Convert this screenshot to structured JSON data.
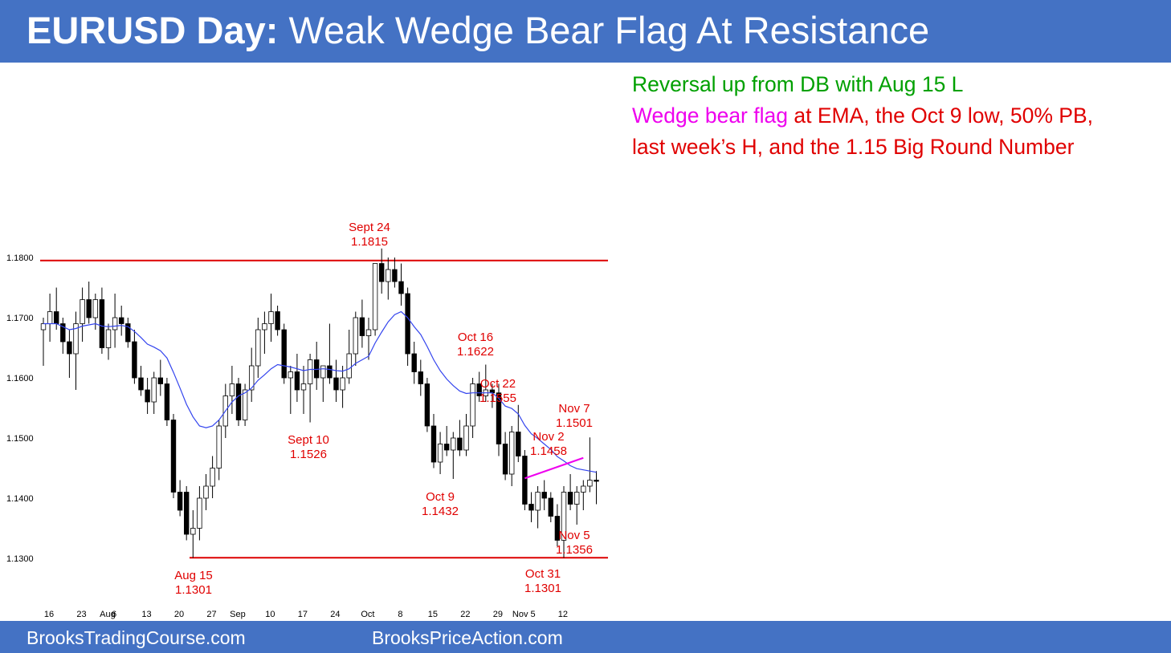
{
  "title": {
    "bold": "EURUSD Day:",
    "rest": "Weak Wedge Bear Flag At Resistance"
  },
  "commentary": {
    "line1": "Reversal up from DB with Aug 15 L",
    "line2_magenta": "Wedge bear flag",
    "line2_rest": "at EMA, the Oct 9 low, 50% PB,",
    "line3": "last week’s H, and the 1.15 Big Round Number"
  },
  "footer": {
    "left": "BrooksTradingCourse.com",
    "right": "BrooksPriceAction.com"
  },
  "colors": {
    "banner": "#4472c4",
    "commentary_green": "#00a000",
    "commentary_red": "#e00000",
    "wedge_magenta": "#ee00ee",
    "ema_blue": "#3344ee",
    "resistance_support": "#dd0000",
    "annotation_red": "#e00000"
  },
  "chart_data": {
    "type": "candlestick",
    "title": "",
    "xlabel": "",
    "ylabel": "",
    "ylim": [
      1.1265,
      1.1845
    ],
    "y_ticks": [
      "1.1300",
      "1.1400",
      "1.1500",
      "1.1600",
      "1.1700",
      "1.1800"
    ],
    "x_ticks": [
      {
        "label": "16",
        "bar": 0
      },
      {
        "label": "23",
        "bar": 5
      },
      {
        "label": "Aug",
        "bar": 9
      },
      {
        "label": "6",
        "bar": 10
      },
      {
        "label": "13",
        "bar": 15
      },
      {
        "label": "20",
        "bar": 20
      },
      {
        "label": "27",
        "bar": 25
      },
      {
        "label": "Sep",
        "bar": 29
      },
      {
        "label": "10",
        "bar": 34
      },
      {
        "label": "17",
        "bar": 39
      },
      {
        "label": "24",
        "bar": 44
      },
      {
        "label": "Oct",
        "bar": 49
      },
      {
        "label": "8",
        "bar": 54
      },
      {
        "label": "15",
        "bar": 59
      },
      {
        "label": "22",
        "bar": 64
      },
      {
        "label": "29",
        "bar": 69
      },
      {
        "label": "Nov 5",
        "bar": 73
      },
      {
        "label": "12",
        "bar": 79
      }
    ],
    "series": [
      {
        "type": "ohlc",
        "bars": [
          [
            1.168,
            1.17,
            1.162,
            1.169
          ],
          [
            1.169,
            1.174,
            1.166,
            1.171
          ],
          [
            1.171,
            1.175,
            1.168,
            1.169
          ],
          [
            1.169,
            1.17,
            1.164,
            1.166
          ],
          [
            1.166,
            1.168,
            1.16,
            1.164
          ],
          [
            1.164,
            1.171,
            1.158,
            1.169
          ],
          [
            1.169,
            1.175,
            1.166,
            1.173
          ],
          [
            1.173,
            1.176,
            1.169,
            1.17
          ],
          [
            1.17,
            1.174,
            1.168,
            1.173
          ],
          [
            1.173,
            1.175,
            1.164,
            1.165
          ],
          [
            1.165,
            1.169,
            1.163,
            1.168
          ],
          [
            1.168,
            1.174,
            1.165,
            1.17
          ],
          [
            1.17,
            1.172,
            1.167,
            1.169
          ],
          [
            1.169,
            1.17,
            1.165,
            1.166
          ],
          [
            1.166,
            1.168,
            1.159,
            1.16
          ],
          [
            1.16,
            1.162,
            1.157,
            1.158
          ],
          [
            1.158,
            1.16,
            1.154,
            1.156
          ],
          [
            1.156,
            1.161,
            1.154,
            1.16
          ],
          [
            1.16,
            1.163,
            1.157,
            1.159
          ],
          [
            1.159,
            1.16,
            1.152,
            1.153
          ],
          [
            1.153,
            1.154,
            1.14,
            1.141
          ],
          [
            1.141,
            1.143,
            1.137,
            1.138
          ],
          [
            1.141,
            1.142,
            1.133,
            1.134
          ],
          [
            1.134,
            1.138,
            1.1301,
            1.135
          ],
          [
            1.135,
            1.142,
            1.133,
            1.14
          ],
          [
            1.14,
            1.144,
            1.138,
            1.142
          ],
          [
            1.142,
            1.147,
            1.14,
            1.145
          ],
          [
            1.145,
            1.153,
            1.143,
            1.152
          ],
          [
            1.152,
            1.159,
            1.15,
            1.157
          ],
          [
            1.157,
            1.162,
            1.154,
            1.159
          ],
          [
            1.159,
            1.16,
            1.152,
            1.153
          ],
          [
            1.153,
            1.159,
            1.152,
            1.158
          ],
          [
            1.158,
            1.165,
            1.156,
            1.162
          ],
          [
            1.162,
            1.17,
            1.16,
            1.168
          ],
          [
            1.168,
            1.171,
            1.164,
            1.169
          ],
          [
            1.169,
            1.174,
            1.166,
            1.171
          ],
          [
            1.171,
            1.172,
            1.167,
            1.168
          ],
          [
            1.168,
            1.169,
            1.159,
            1.16
          ],
          [
            1.16,
            1.162,
            1.154,
            1.161
          ],
          [
            1.161,
            1.164,
            1.156,
            1.158
          ],
          [
            1.158,
            1.162,
            1.154,
            1.159
          ],
          [
            1.159,
            1.164,
            1.1526,
            1.163
          ],
          [
            1.163,
            1.166,
            1.158,
            1.16
          ],
          [
            1.16,
            1.162,
            1.156,
            1.162
          ],
          [
            1.162,
            1.169,
            1.159,
            1.16
          ],
          [
            1.16,
            1.163,
            1.156,
            1.158
          ],
          [
            1.158,
            1.162,
            1.155,
            1.16
          ],
          [
            1.16,
            1.168,
            1.159,
            1.164
          ],
          [
            1.164,
            1.171,
            1.162,
            1.17
          ],
          [
            1.17,
            1.173,
            1.165,
            1.167
          ],
          [
            1.167,
            1.17,
            1.163,
            1.168
          ],
          [
            1.168,
            1.179,
            1.167,
            1.179
          ],
          [
            1.179,
            1.1815,
            1.174,
            1.176
          ],
          [
            1.176,
            1.18,
            1.173,
            1.178
          ],
          [
            1.178,
            1.18,
            1.175,
            1.176
          ],
          [
            1.176,
            1.179,
            1.172,
            1.174
          ],
          [
            1.174,
            1.175,
            1.162,
            1.164
          ],
          [
            1.164,
            1.166,
            1.159,
            1.161
          ],
          [
            1.161,
            1.163,
            1.157,
            1.159
          ],
          [
            1.159,
            1.16,
            1.151,
            1.152
          ],
          [
            1.152,
            1.154,
            1.145,
            1.146
          ],
          [
            1.146,
            1.151,
            1.144,
            1.149
          ],
          [
            1.149,
            1.152,
            1.147,
            1.148
          ],
          [
            1.148,
            1.151,
            1.1432,
            1.15
          ],
          [
            1.15,
            1.153,
            1.147,
            1.148
          ],
          [
            1.148,
            1.154,
            1.147,
            1.152
          ],
          [
            1.152,
            1.16,
            1.15,
            1.159
          ],
          [
            1.159,
            1.161,
            1.156,
            1.157
          ],
          [
            1.157,
            1.1622,
            1.156,
            1.158
          ],
          [
            1.158,
            1.159,
            1.155,
            1.1575
          ],
          [
            1.1575,
            1.159,
            1.147,
            1.149
          ],
          [
            1.149,
            1.151,
            1.143,
            1.144
          ],
          [
            1.144,
            1.152,
            1.142,
            1.151
          ],
          [
            1.151,
            1.1555,
            1.146,
            1.147
          ],
          [
            1.147,
            1.148,
            1.138,
            1.139
          ],
          [
            1.139,
            1.141,
            1.136,
            1.138
          ],
          [
            1.138,
            1.142,
            1.135,
            1.141
          ],
          [
            1.141,
            1.143,
            1.138,
            1.14
          ],
          [
            1.14,
            1.141,
            1.136,
            1.137
          ],
          [
            1.137,
            1.139,
            1.132,
            1.133
          ],
          [
            1.133,
            1.142,
            1.1301,
            1.141
          ],
          [
            1.141,
            1.144,
            1.138,
            1.139
          ],
          [
            1.139,
            1.142,
            1.1356,
            1.141
          ],
          [
            1.141,
            1.143,
            1.138,
            1.142
          ],
          [
            1.142,
            1.1501,
            1.141,
            1.143
          ],
          [
            1.143,
            1.1445,
            1.139,
            1.1428
          ]
        ]
      },
      {
        "type": "ema",
        "values": [
          1.169,
          1.169,
          1.169,
          1.1685,
          1.168,
          1.1682,
          1.1686,
          1.1688,
          1.169,
          1.1686,
          1.1685,
          1.1686,
          1.1687,
          1.1685,
          1.1677,
          1.1667,
          1.1656,
          1.1651,
          1.1645,
          1.1633,
          1.1609,
          1.1583,
          1.1556,
          1.1535,
          1.152,
          1.1517,
          1.152,
          1.153,
          1.1545,
          1.156,
          1.157,
          1.1575,
          1.1583,
          1.1596,
          1.1605,
          1.1615,
          1.1622,
          1.162,
          1.1618,
          1.1615,
          1.1612,
          1.1614,
          1.1614,
          1.1615,
          1.1614,
          1.1612,
          1.1611,
          1.1615,
          1.1624,
          1.163,
          1.1636,
          1.1658,
          1.1676,
          1.1693,
          1.1705,
          1.171,
          1.17,
          1.1685,
          1.1672,
          1.1652,
          1.163,
          1.1612,
          1.1598,
          1.1587,
          1.1578,
          1.1574,
          1.1575,
          1.1575,
          1.1575,
          1.1575,
          1.1566,
          1.1553,
          1.1549,
          1.154,
          1.1521,
          1.1507,
          1.1499,
          1.149,
          1.1481,
          1.1469,
          1.1462,
          1.1454,
          1.1449,
          1.1447,
          1.1445,
          1.1443
        ]
      }
    ],
    "resistance_line": 1.1795,
    "support_line": 1.1301,
    "wedge_line": {
      "from_bar": 74,
      "from_value": 1.1433,
      "to_bar": 83,
      "to_value": 1.1467
    },
    "annotations": [
      {
        "line1": "Sept 24",
        "line2": "1.1815",
        "bar": 52
      },
      {
        "line1": "Sept 10",
        "line2": "1.1526",
        "bar": 41
      },
      {
        "line1": "Aug 15",
        "line2": "1.1301",
        "bar": 23
      },
      {
        "line1": "Oct 16",
        "line2": "1.1622",
        "bar": 68
      },
      {
        "line1": "Oct 22",
        "line2": "1.1555",
        "bar": 73
      },
      {
        "line1": "Oct 9",
        "line2": "1.1432",
        "bar": 63
      },
      {
        "line1": "Nov 2",
        "line2": "1.1458",
        "bar": 79
      },
      {
        "line1": "Nov 7",
        "line2": "1.1501",
        "bar": 84
      },
      {
        "line1": "Nov 5",
        "line2": "1.1356",
        "bar": 84
      },
      {
        "line1": "Oct 31",
        "line2": "1.1301",
        "bar": 80
      }
    ]
  }
}
